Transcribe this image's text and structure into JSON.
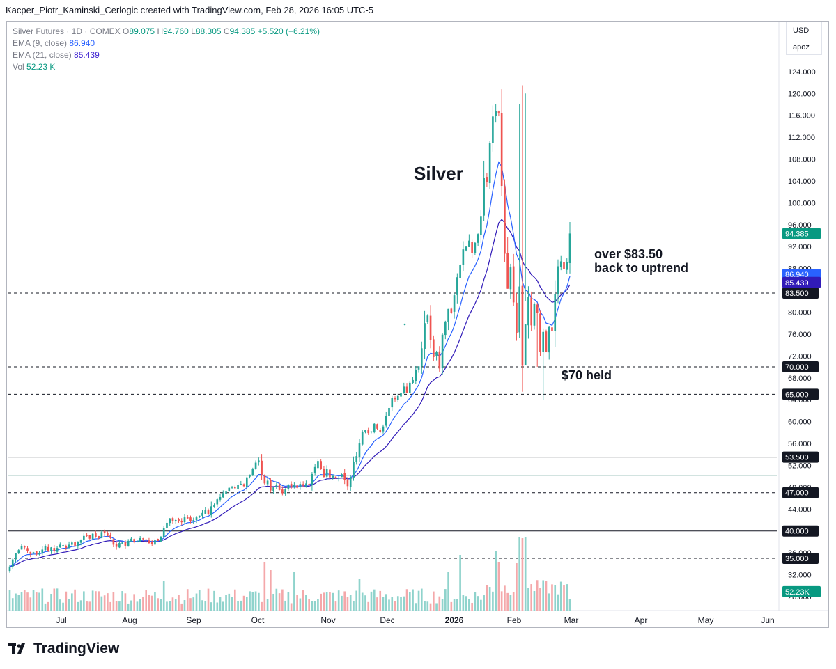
{
  "header": {
    "attribution": "Kacper_Piotr_Kaminski_Cerlogic created with TradingView.com, Feb 28, 2026 16:05 UTC-5"
  },
  "legend": {
    "symbol": "Silver Futures · 1D · COMEX",
    "o_label": "O",
    "o_value": "89.075",
    "h_label": "H",
    "h_value": "94.760",
    "l_label": "L",
    "l_value": "88.305",
    "c_label": "C",
    "c_value": "94.385",
    "change": "+5.520 (+6.21%)",
    "ema9_label": "EMA (9, close)",
    "ema9_value": "86.940",
    "ema21_label": "EMA (21, close)",
    "ema21_value": "85.439",
    "vol_label": "Vol",
    "vol_value": "52.23 K"
  },
  "scale_controls": {
    "currency": "USD",
    "mode": "apoz"
  },
  "annotations": {
    "title": "Silver",
    "uptrend_line1": "over $83.50",
    "uptrend_line2": "back to uptrend",
    "held": "$70 held"
  },
  "footer": {
    "brand": "TradingView"
  },
  "colors": {
    "up": "#26a69a",
    "down": "#ef5350",
    "ema9": "#2962ff",
    "ema21": "#311bb8",
    "vol_up": "#8fd3cc",
    "vol_down": "#f4a8aa",
    "trendline": "#4a8f86"
  },
  "chart_data": {
    "type": "candlestick",
    "instrument": "Silver Futures · 1D · COMEX",
    "x_tick_labels": [
      "Jul",
      "Aug",
      "Sep",
      "Oct",
      "Nov",
      "Dec",
      "2026",
      "Feb",
      "Mar",
      "Apr",
      "May",
      "Jun"
    ],
    "y_tick_labels": [
      "28.000",
      "32.000",
      "36.000",
      "40.000",
      "44.000",
      "48.000",
      "52.000",
      "56.000",
      "60.000",
      "64.000",
      "68.000",
      "72.000",
      "76.000",
      "80.000",
      "84.000",
      "88.000",
      "92.000",
      "96.000",
      "100.000",
      "104.000",
      "108.000",
      "112.000",
      "116.000",
      "120.000",
      "124.000"
    ],
    "ylim": [
      28,
      124
    ],
    "price_levels": [
      {
        "value": 83.5,
        "label": "83.500",
        "style": "dashed"
      },
      {
        "value": 70.0,
        "label": "70.000",
        "style": "dashed"
      },
      {
        "value": 65.0,
        "label": "65.000",
        "style": "dashed"
      },
      {
        "value": 53.5,
        "label": "53.500",
        "style": "solid"
      },
      {
        "value": 47.0,
        "label": "47.000",
        "style": "dashed"
      },
      {
        "value": 40.0,
        "label": "40.000",
        "style": "solid"
      },
      {
        "value": 35.0,
        "label": "35.000",
        "style": "dashed"
      }
    ],
    "horizontal_line": {
      "value": 50.2,
      "style": "solid"
    },
    "price_tags": [
      {
        "label": "94.385",
        "value": 94.385,
        "color": "#089981"
      },
      {
        "label": "86.940",
        "value": 86.94,
        "color": "#2962ff"
      },
      {
        "label": "85.439",
        "value": 85.439,
        "color": "#311bb8"
      },
      {
        "label": "52.23K",
        "value": 28.9,
        "color": "#089981"
      }
    ],
    "closes": [
      33.5,
      34.8,
      35.9,
      36.5,
      37.2,
      37.0,
      36.3,
      35.8,
      36.1,
      35.7,
      36.0,
      36.6,
      37.2,
      36.4,
      37.0,
      36.3,
      36.9,
      37.5,
      37.4,
      36.9,
      37.5,
      37.9,
      37.3,
      38.0,
      38.3,
      39.1,
      39.2,
      38.6,
      39.5,
      38.9,
      38.7,
      39.8,
      39.6,
      39.1,
      38.7,
      37.5,
      37.1,
      37.8,
      37.9,
      37.3,
      38.2,
      38.6,
      37.9,
      38.2,
      38.7,
      38.5,
      38.3,
      37.8,
      37.6,
      38.4,
      38.2,
      38.9,
      40.5,
      41.5,
      42.3,
      41.8,
      42.0,
      41.8,
      41.6,
      42.5,
      42.3,
      41.8,
      42.0,
      42.5,
      42.8,
      43.3,
      43.9,
      43.1,
      44.5,
      44.8,
      45.8,
      46.2,
      46.9,
      47.2,
      47.9,
      48.1,
      47.8,
      48.4,
      48.6,
      48.2,
      49.8,
      50.3,
      51.3,
      52.5,
      52.9,
      50.3,
      48.7,
      49.2,
      47.4,
      48.0,
      48.5,
      47.5,
      46.9,
      47.6,
      48.5,
      48.0,
      48.5,
      47.9,
      48.6,
      48.3,
      48.7,
      48.5,
      50.4,
      51.7,
      52.8,
      51.4,
      49.9,
      51.4,
      49.8,
      50.1,
      49.7,
      49.7,
      50.4,
      49.3,
      48.2,
      49.9,
      52.7,
      53.7,
      56.0,
      58.1,
      58.5,
      57.9,
      58.2,
      59.6,
      58.7,
      58.1,
      59.1,
      61.0,
      62.5,
      64.4,
      64.1,
      64.7,
      65.3,
      66.4,
      65.3,
      67.1,
      67.6,
      69.5,
      70.1,
      73.4,
      78.0,
      79.4,
      74.9,
      71.8,
      72.8,
      69.7,
      75.9,
      78.3,
      80.6,
      79.9,
      83.1,
      86.4,
      88.6,
      91.5,
      92.0,
      93.1,
      90.8,
      92.7,
      94.3,
      97.6,
      104.6,
      103.8,
      110.9,
      115.8,
      116.8,
      116.5,
      103.1,
      90.7,
      84.3,
      88.2,
      81.8,
      76.2,
      84.7,
      70.2,
      77.8,
      82.8,
      77.6,
      81.5,
      79.9,
      72.8,
      76.4,
      72.8,
      77.3,
      76.5,
      83.3,
      88.4,
      89.3,
      87.9,
      89.1,
      94.4
    ],
    "series": [
      {
        "name": "Silver Futures",
        "type": "candlestick",
        "values_ref": "closes"
      },
      {
        "name": "EMA (9, close)",
        "type": "line",
        "last": 86.94
      },
      {
        "name": "EMA (21, close)",
        "type": "line",
        "last": 85.439
      },
      {
        "name": "Vol",
        "type": "bar",
        "last": "52.23K"
      }
    ]
  }
}
